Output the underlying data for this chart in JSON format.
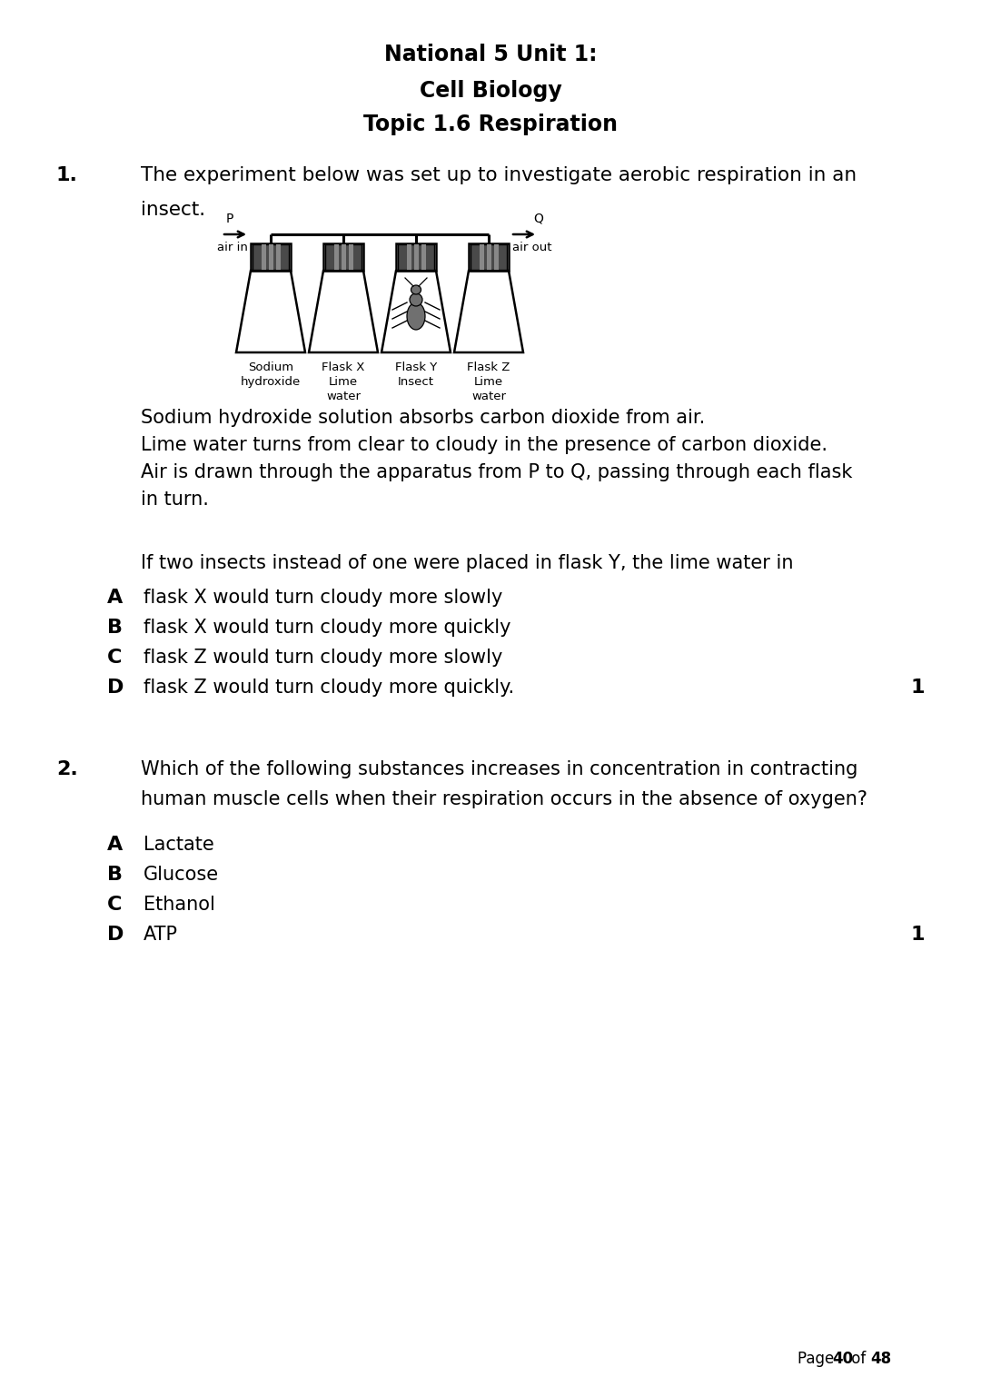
{
  "bg_color": "#ffffff",
  "title_lines": [
    "National 5 Unit 1:",
    "Cell Biology",
    "Topic 1.6 Respiration"
  ],
  "q1_number": "1.",
  "q1_text_line1": "The experiment below was set up to investigate aerobic respiration in an",
  "q1_text_line2": "insect.",
  "info_lines": [
    "Sodium hydroxide solution absorbs carbon dioxide from air.",
    "Lime water turns from clear to cloudy in the presence of carbon dioxide.",
    "Air is drawn through the apparatus from P to Q, passing through each flask",
    "in turn."
  ],
  "q1_question": "If two insects instead of one were placed in flask Y, the lime water in",
  "q1_options": [
    [
      "A",
      "flask X would turn cloudy more slowly"
    ],
    [
      "B",
      "flask X would turn cloudy more quickly"
    ],
    [
      "C",
      "flask Z would turn cloudy more slowly"
    ],
    [
      "D",
      "flask Z would turn cloudy more quickly."
    ]
  ],
  "q1_mark": "1",
  "q2_number": "2.",
  "q2_text_line1": "Which of the following substances increases in concentration in contracting",
  "q2_text_line2": "human muscle cells when their respiration occurs in the absence of oxygen?",
  "q2_options": [
    [
      "A",
      "Lactate"
    ],
    [
      "B",
      "Glucose"
    ],
    [
      "C",
      "Ethanol"
    ],
    [
      "D",
      "ATP"
    ]
  ],
  "q2_mark": "1",
  "flask_labels": [
    "Sodium\nhydroxide",
    "Flask X\nLime\nwater",
    "Flask Y\nInsect",
    "Flask Z\nLime\nwater"
  ],
  "p_label": "P",
  "q_label": "Q",
  "air_in": "air in",
  "air_out": "air out"
}
